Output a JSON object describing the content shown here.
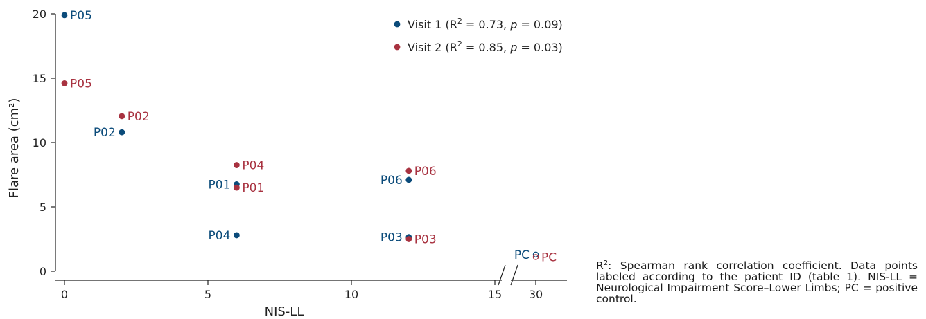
{
  "chart_data": {
    "type": "scatter",
    "xlabel": "NIS-LL",
    "ylabel": "Flare area (cm²)",
    "x_ticks": [
      "0",
      "5",
      "10",
      "15",
      "30"
    ],
    "y_ticks": [
      "0",
      "5",
      "10",
      "15",
      "20"
    ],
    "xlim": [
      0,
      17.5
    ],
    "x_break": "between 15 and 30",
    "ylim": [
      0,
      20
    ],
    "grid": false,
    "legend_position": "top-right",
    "series": [
      {
        "name": "Visit 1 (R² = 0.73, p = 0.09)",
        "legend_prefix": "Visit 1 (R",
        "legend_r2": "= 0.73, ",
        "legend_p": "= 0.09)",
        "color": "#0b4b7a",
        "points": [
          {
            "label": "P05",
            "x": 0,
            "y": 19.9,
            "label_side": "right"
          },
          {
            "label": "P02",
            "x": 2,
            "y": 10.8,
            "label_side": "left"
          },
          {
            "label": "P01",
            "x": 6,
            "y": 6.75,
            "label_side": "left"
          },
          {
            "label": "P04",
            "x": 6,
            "y": 2.8,
            "label_side": "left"
          },
          {
            "label": "P06",
            "x": 12,
            "y": 7.1,
            "label_side": "left"
          },
          {
            "label": "P03",
            "x": 12,
            "y": 2.65,
            "label_side": "left"
          },
          {
            "label": "PC",
            "x": 30,
            "y": 1.3,
            "label_side": "left",
            "hollow": true
          }
        ]
      },
      {
        "name": "Visit 2 (R² = 0.85, p = 0.03)",
        "legend_prefix": "Visit 2 (R",
        "legend_r2": "= 0.85, ",
        "legend_p": "= 0.03)",
        "color": "#a83240",
        "points": [
          {
            "label": "P05",
            "x": 0,
            "y": 14.6,
            "label_side": "right"
          },
          {
            "label": "P02",
            "x": 2,
            "y": 12.05,
            "label_side": "right"
          },
          {
            "label": "P04",
            "x": 6,
            "y": 8.25,
            "label_side": "right"
          },
          {
            "label": "P01",
            "x": 6,
            "y": 6.5,
            "label_side": "right"
          },
          {
            "label": "P06",
            "x": 12,
            "y": 7.8,
            "label_side": "right"
          },
          {
            "label": "P03",
            "x": 12,
            "y": 2.5,
            "label_side": "right"
          },
          {
            "label": "PC",
            "x": 30,
            "y": 1.1,
            "label_side": "right",
            "hollow": true
          }
        ]
      }
    ]
  },
  "note": {
    "sup": "2",
    "pre": "R",
    "text": ": Spearman rank correlation coefficient. Data points labeled according to the patient ID (table 1). NIS-LL = Neurological Impairment Score–Lower Limbs; PC = positive control."
  }
}
